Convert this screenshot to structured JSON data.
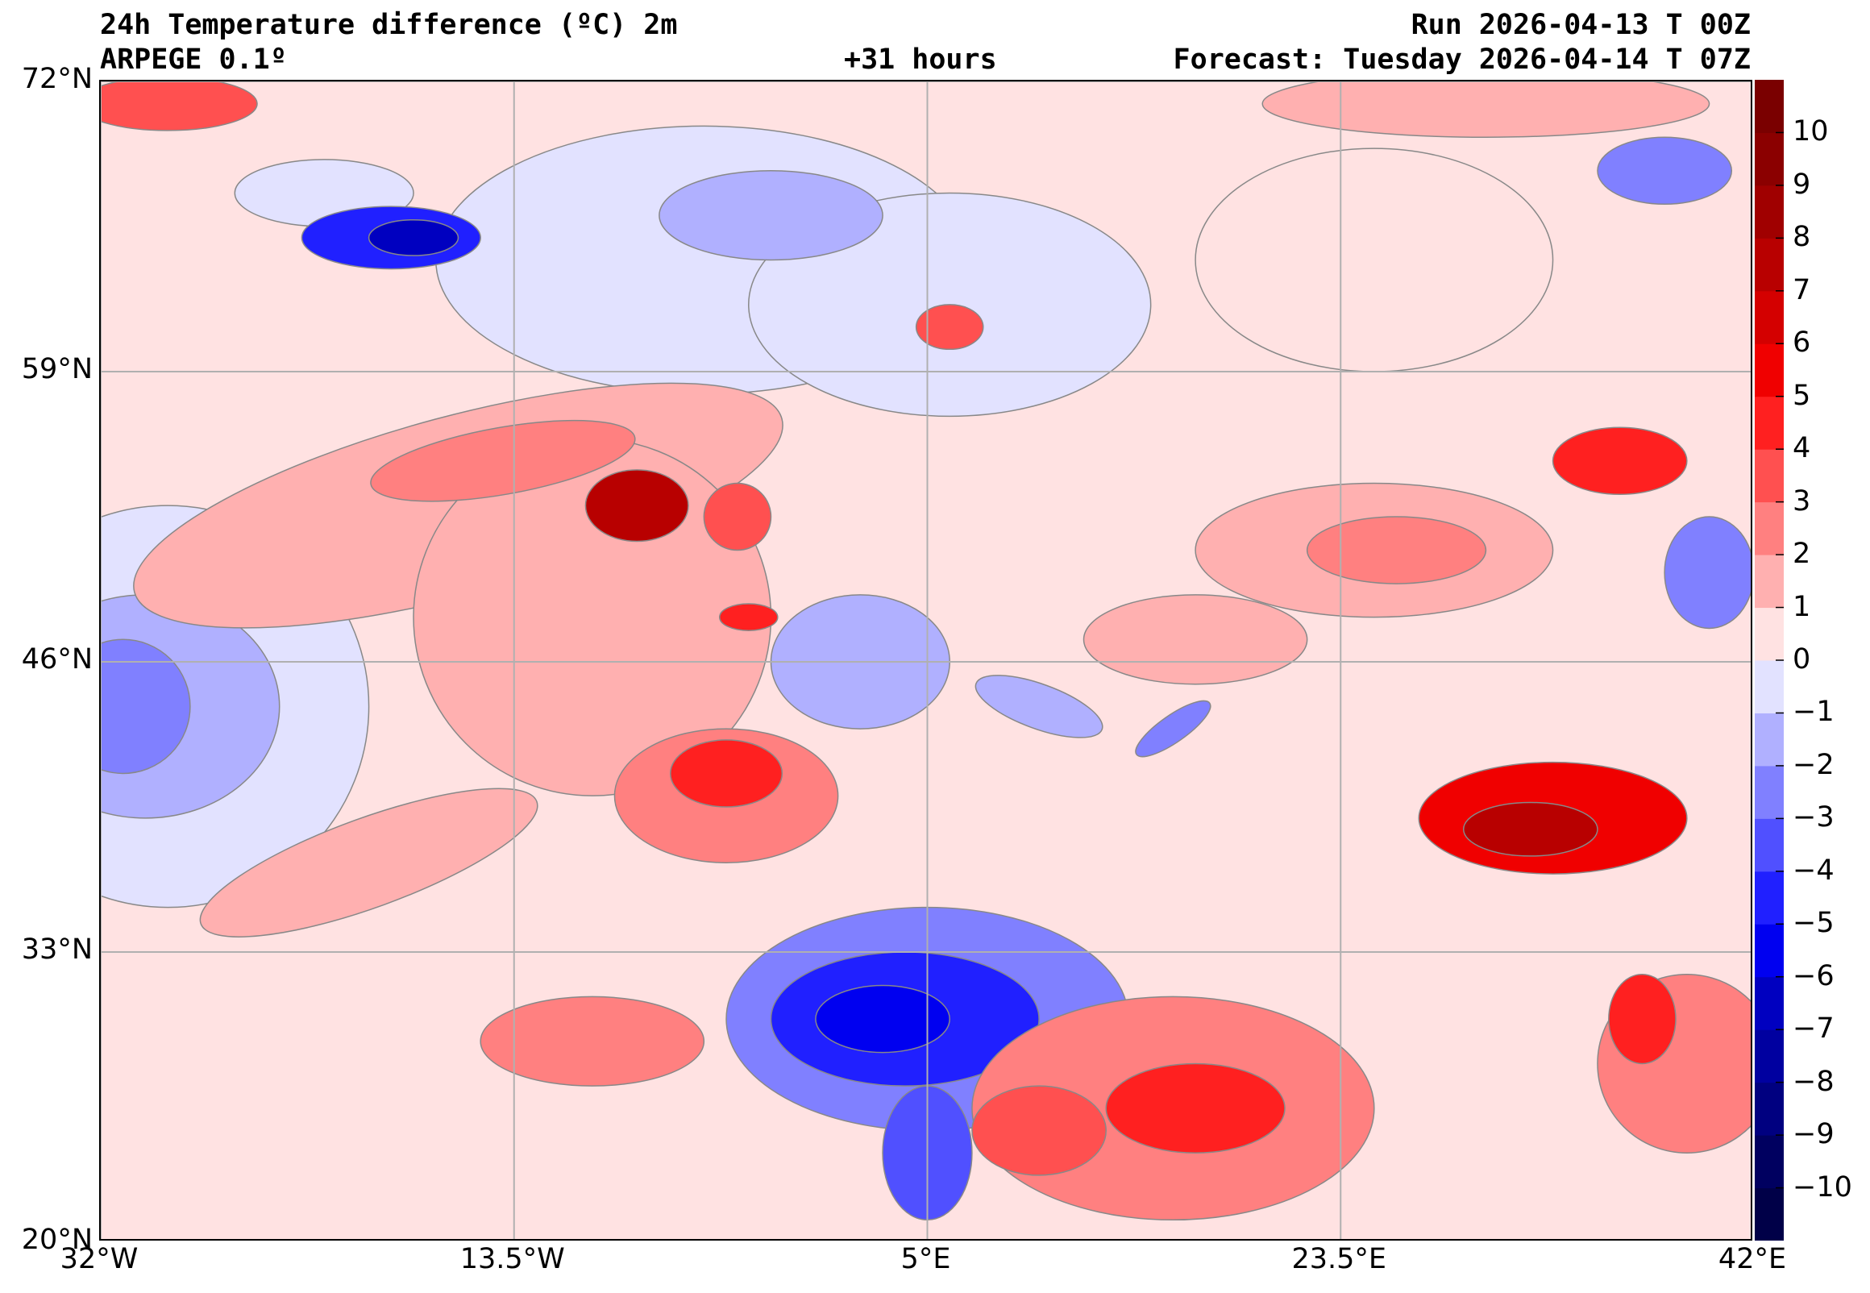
{
  "header": {
    "title": "24h Temperature difference (ºC) 2m",
    "model": "ARPEGE 0.1º",
    "lead_time": "+31 hours",
    "run": "Run 2026-04-13 T 00Z",
    "forecast": "Forecast: Tuesday 2026-04-14 T 07Z"
  },
  "map": {
    "lon_range": [
      -32,
      42
    ],
    "lat_range": [
      20,
      72
    ],
    "lat_ticks": [
      {
        "value": 72,
        "label": "72°N"
      },
      {
        "value": 59,
        "label": "59°N"
      },
      {
        "value": 46,
        "label": "46°N"
      },
      {
        "value": 33,
        "label": "33°N"
      },
      {
        "value": 20,
        "label": "20°N"
      }
    ],
    "lon_ticks": [
      {
        "value": -32,
        "label": "32°W"
      },
      {
        "value": -13.5,
        "label": "13.5°W"
      },
      {
        "value": 5,
        "label": "5°E"
      },
      {
        "value": 23.5,
        "label": "23.5°E"
      },
      {
        "value": 42,
        "label": "42°E"
      }
    ]
  },
  "colorbar": {
    "min": -11,
    "max": 11,
    "tick_labels": [
      "10",
      "9",
      "8",
      "7",
      "6",
      "5",
      "4",
      "3",
      "2",
      "1",
      "0",
      "−1",
      "−2",
      "−3",
      "−4",
      "−5",
      "−6",
      "−7",
      "−8",
      "−9",
      "−10"
    ],
    "tick_values": [
      10,
      9,
      8,
      7,
      6,
      5,
      4,
      3,
      2,
      1,
      0,
      -1,
      -2,
      -3,
      -4,
      -5,
      -6,
      -7,
      -8,
      -9,
      -10
    ],
    "colors": [
      "#000048",
      "#000060",
      "#000080",
      "#0000a0",
      "#0000c0",
      "#0000f0",
      "#2020ff",
      "#5050ff",
      "#8080ff",
      "#b0b0ff",
      "#e2e2ff",
      "#ffe2e2",
      "#ffb0b0",
      "#ff8080",
      "#ff5050",
      "#ff2020",
      "#f00000",
      "#d40000",
      "#b80000",
      "#a00000",
      "#8b0000",
      "#7a0000"
    ]
  }
}
